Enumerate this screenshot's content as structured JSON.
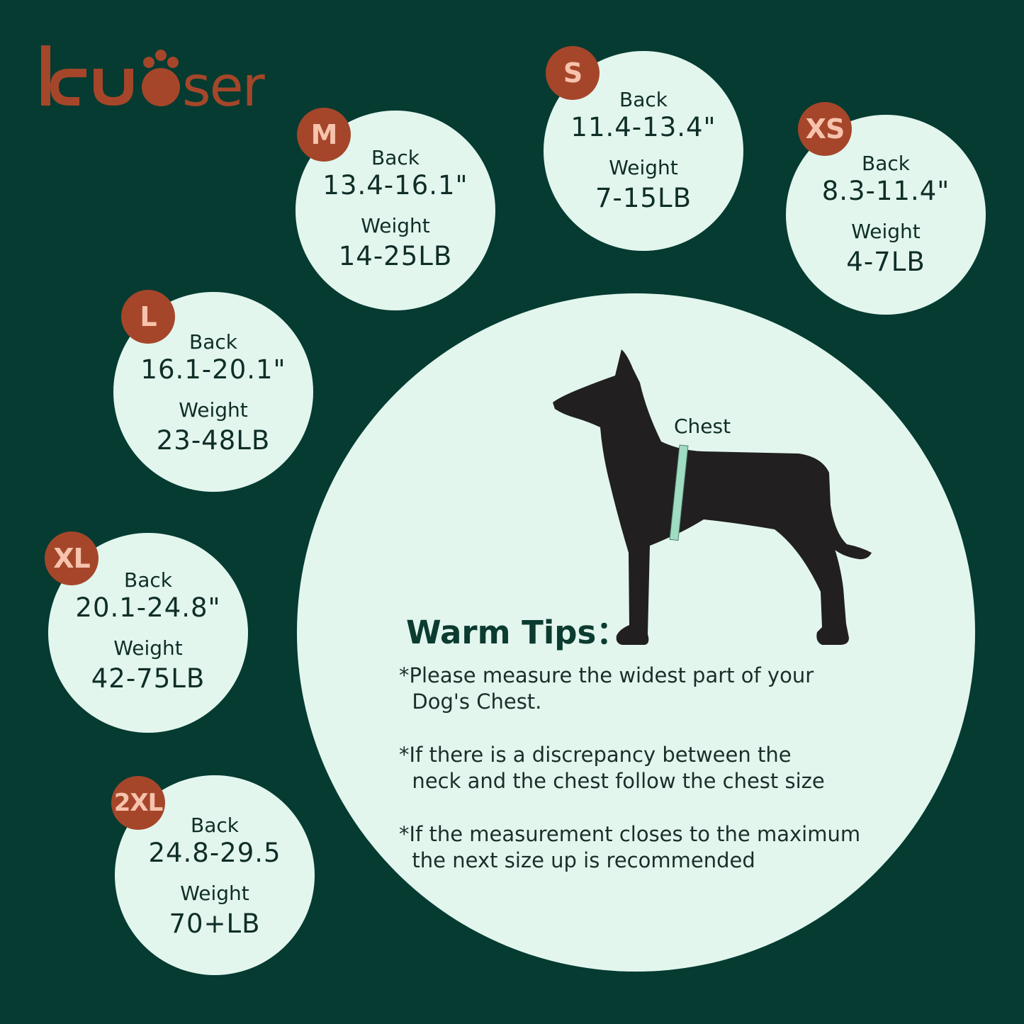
{
  "brand": {
    "logo_text": "kuoser",
    "color": "#a5462a"
  },
  "colors": {
    "background": "#053b31",
    "circle": "#e2f6ee",
    "badge": "#a5462a",
    "badge_text": "#f7c3ad",
    "tape": "#9fdcc2"
  },
  "sizes": [
    {
      "size": "M",
      "back_label": "Back",
      "back": "13.4-16.1\"",
      "weight_label": "Weight",
      "weight": "14-25LB"
    },
    {
      "size": "S",
      "back_label": "Back",
      "back": "11.4-13.4\"",
      "weight_label": "Weight",
      "weight": "7-15LB"
    },
    {
      "size": "XS",
      "back_label": "Back",
      "back": "8.3-11.4\"",
      "weight_label": "Weight",
      "weight": "4-7LB"
    },
    {
      "size": "L",
      "back_label": "Back",
      "back": "16.1-20.1\"",
      "weight_label": "Weight",
      "weight": "23-48LB"
    },
    {
      "size": "XL",
      "back_label": "Back",
      "back": "20.1-24.8\"",
      "weight_label": "Weight",
      "weight": "42-75LB"
    },
    {
      "size": "2XL",
      "back_label": "Back",
      "back": "24.8-29.5",
      "weight_label": "Weight",
      "weight": "70+LB"
    }
  ],
  "illustration": {
    "chest_label": "Chest",
    "icon": "dog-silhouette-with-measuring-tape"
  },
  "tips": {
    "title": "Warm Tips：",
    "items": [
      "*Please measure the widest part of your\n  Dog's Chest.",
      "*If there is a discrepancy between the\n  neck and the chest follow the chest size",
      "*If the measurement closes to the maximum\n  the next size up is recommended"
    ]
  }
}
